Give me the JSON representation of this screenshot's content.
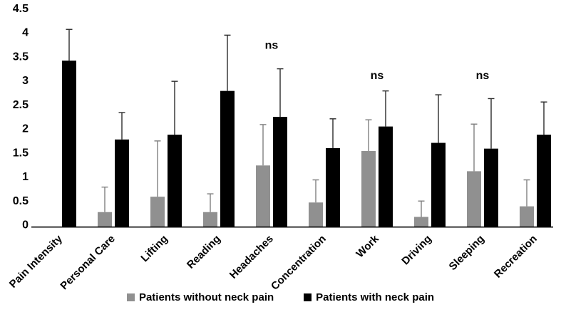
{
  "chart_data": {
    "type": "bar",
    "title": "",
    "xlabel": "",
    "ylabel": "",
    "categories": [
      "Pain Intensity",
      "Personal Care",
      "Lifting",
      "Reading",
      "Headaches",
      "Concentration",
      "Work",
      "Driving",
      "Sleeping",
      "Recreation"
    ],
    "series": [
      {
        "name": "Patients without neck pain",
        "color": "#909090",
        "error_color": "#7f7f7f",
        "values": [
          0,
          0.3,
          0.62,
          0.3,
          1.27,
          0.5,
          1.57,
          0.2,
          1.15,
          0.42
        ],
        "errors_up": [
          0,
          0.52,
          1.16,
          0.38,
          0.85,
          0.47,
          0.65,
          0.33,
          0.98,
          0.55
        ]
      },
      {
        "name": "Patients with neck pain",
        "color": "#000000",
        "error_color": "#2b2b2b",
        "values": [
          3.45,
          1.81,
          1.91,
          2.82,
          2.28,
          1.63,
          2.08,
          1.74,
          1.62,
          1.91
        ],
        "errors_up": [
          0.65,
          0.56,
          1.11,
          1.16,
          1.0,
          0.61,
          0.74,
          1.0,
          1.04,
          0.68
        ]
      }
    ],
    "annotations": [
      {
        "label": "ns",
        "category": "Headaches",
        "y": 3.78
      },
      {
        "label": "ns",
        "category": "Work",
        "y": 3.15
      },
      {
        "label": "ns",
        "category": "Sleeping",
        "y": 3.15
      }
    ],
    "y_axis": {
      "min": 0,
      "max": 4.5,
      "step": 0.5,
      "ticks": [
        "0",
        "0.5",
        "1",
        "1.5",
        "2",
        "2.5",
        "3",
        "3.5",
        "4",
        "4.5"
      ]
    },
    "ylim": [
      0,
      4.5
    ],
    "grid": false,
    "legend_position": "bottom"
  }
}
